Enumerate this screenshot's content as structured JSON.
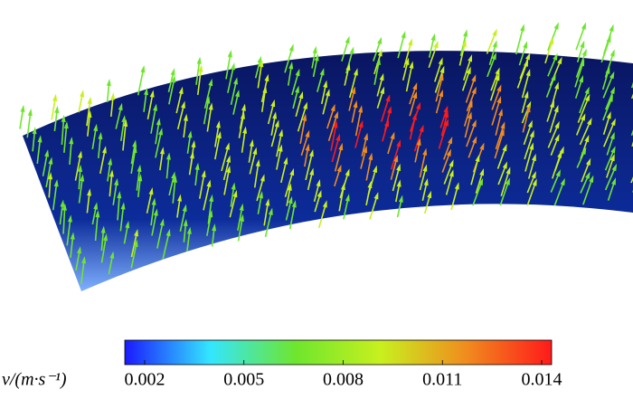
{
  "colorbar": {
    "label": "v/(m·s⁻¹)",
    "lim": [
      0.0014,
      0.0143
    ],
    "ticks": [
      0.002,
      0.005,
      0.008,
      0.011,
      0.014
    ],
    "colors": [
      "#1a1aff",
      "#33e6ff",
      "#6ee62e",
      "#c8f01e",
      "#f08c1e",
      "#ff1a1a"
    ]
  }
}
